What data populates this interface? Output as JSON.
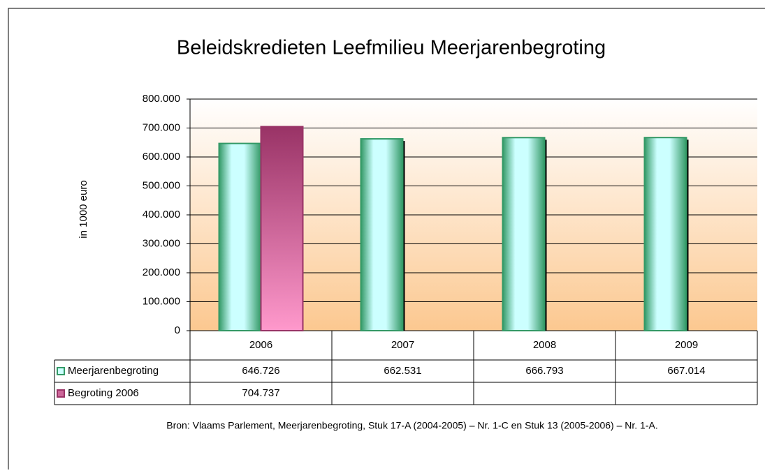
{
  "chart_data": {
    "type": "bar",
    "title": "Beleidskredieten Leefmilieu Meerjarenbegroting",
    "y_label": "in 1000 euro",
    "categories": [
      "2006",
      "2007",
      "2008",
      "2009"
    ],
    "series": [
      {
        "name": "Meerjarenbegroting",
        "color": "#339966",
        "values": [
          646726,
          662531,
          666793,
          667014
        ],
        "value_labels": [
          "646.726",
          "662.531",
          "666.793",
          "667.014"
        ]
      },
      {
        "name": "Begroting 2006",
        "color": "#993366",
        "values": [
          704737,
          null,
          null,
          null
        ],
        "value_labels": [
          "704.737",
          null,
          null,
          null
        ]
      }
    ],
    "ylim": [
      0,
      800000
    ],
    "yticks": [
      0,
      {
        "value": 100000,
        "label": "100.000"
      },
      {
        "value": 200000,
        "label": "200.000"
      },
      {
        "value": 300000,
        "label": "300.000"
      },
      {
        "value": 400000,
        "label": "400.000"
      },
      {
        "value": 500000,
        "label": "500.000"
      },
      {
        "value": 600000,
        "label": "600.000"
      },
      {
        "value": 700000,
        "label": "700.000"
      },
      {
        "value": 800000,
        "label": "800.000"
      }
    ],
    "grid": true,
    "source": "Bron: Vlaams Parlement, Meerjarenbegroting, Stuk 17-A (2004-2005) – Nr. 1-C en Stuk 13 (2005-2006) – Nr. 1-A."
  }
}
